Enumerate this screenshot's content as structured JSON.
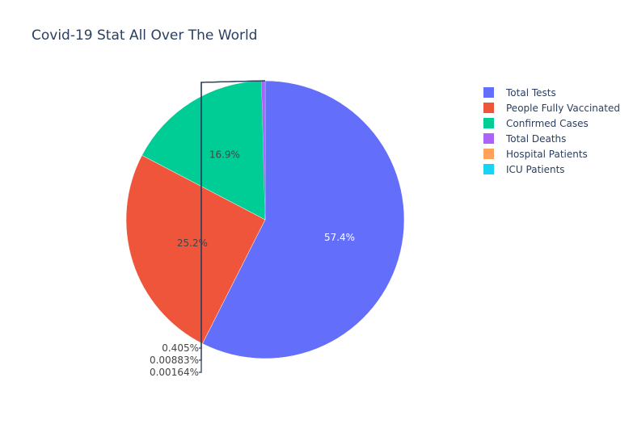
{
  "chart_data": {
    "type": "pie",
    "title": "Covid-19 Stat All Over The World",
    "slices": [
      {
        "label": "Total Tests",
        "percent": 57.4,
        "text": "57.4%",
        "color": "#636efa"
      },
      {
        "label": "People Fully Vaccinated",
        "percent": 25.2,
        "text": "25.2%",
        "color": "#ef553b"
      },
      {
        "label": "Confirmed Cases",
        "percent": 16.9,
        "text": "16.9%",
        "color": "#00cc96"
      },
      {
        "label": "Total Deaths",
        "percent": 0.405,
        "text": "0.405%",
        "color": "#ab63fa"
      },
      {
        "label": "Hospital Patients",
        "percent": 0.00883,
        "text": "0.00883%",
        "color": "#ffa15a"
      },
      {
        "label": "ICU Patients",
        "percent": 0.00164,
        "text": "0.00164%",
        "color": "#19d3f3"
      }
    ],
    "legend": "right"
  }
}
